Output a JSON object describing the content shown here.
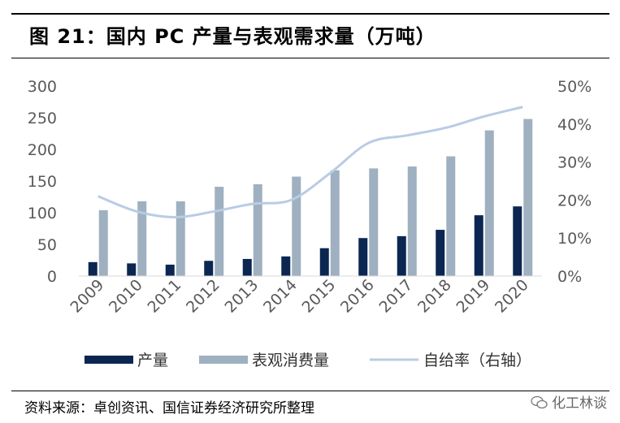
{
  "header": {
    "title": "图 21：国内 PC 产量与表观需求量（万吨）"
  },
  "footer": {
    "source": "资料来源：卓创资讯、国信证券经济研究所整理",
    "watermark": "化工林谈"
  },
  "chart_data": {
    "type": "bar",
    "title": "图 21：国内 PC 产量与表观需求量（万吨）",
    "categories": [
      "2009",
      "2010",
      "2011",
      "2012",
      "2013",
      "2014",
      "2015",
      "2016",
      "2017",
      "2018",
      "2019",
      "2020"
    ],
    "series": [
      {
        "name": "产量",
        "type": "bar",
        "axis": "left",
        "color": "#0b2651",
        "values": [
          22,
          20,
          18,
          24,
          27,
          31,
          44,
          60,
          63,
          73,
          96,
          110
        ]
      },
      {
        "name": "表观消费量",
        "type": "bar",
        "axis": "left",
        "color": "#9fb0c0",
        "values": [
          104,
          118,
          118,
          141,
          145,
          157,
          167,
          170,
          173,
          189,
          230,
          248
        ]
      },
      {
        "name": "自给率（右轴）",
        "type": "line",
        "axis": "right",
        "color": "#b8cce4",
        "values": [
          0.21,
          0.17,
          0.155,
          0.17,
          0.19,
          0.2,
          0.27,
          0.35,
          0.37,
          0.39,
          0.42,
          0.445
        ]
      }
    ],
    "y_left": {
      "ylim": [
        0,
        300
      ],
      "ticks": [
        "0",
        "50",
        "100",
        "150",
        "200",
        "250",
        "300"
      ]
    },
    "y_right": {
      "ylim": [
        0,
        0.5
      ],
      "ticks": [
        "0%",
        "10%",
        "20%",
        "30%",
        "40%",
        "50%"
      ]
    },
    "legend_position": "bottom",
    "grid": false
  }
}
